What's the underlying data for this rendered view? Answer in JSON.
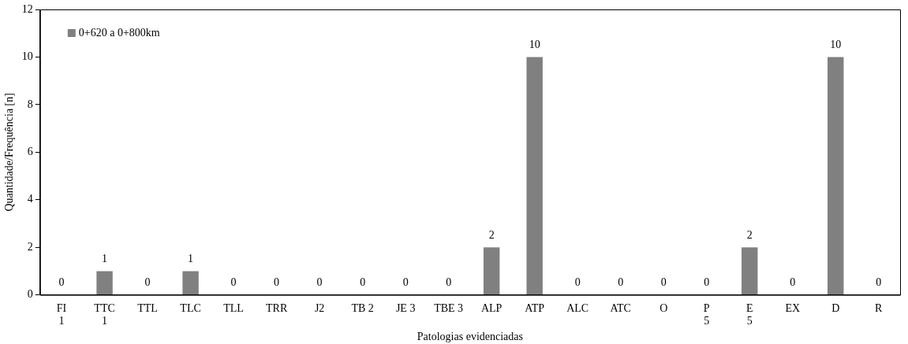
{
  "chart_data": {
    "type": "bar",
    "xlabel": "Patologias evidenciadas",
    "ylabel": "Quantidade/Frequência [n]",
    "categories": [
      "FI\n1",
      "TTC\n1",
      "TTL",
      "TLC",
      "TLL",
      "TRR",
      "J2",
      "TB 2",
      "JE 3",
      "TBE 3",
      "ALP",
      "ATP",
      "ALC",
      "ATC",
      "O",
      "P\n5",
      "E\n5",
      "EX",
      "D",
      "R"
    ],
    "series": [
      {
        "name": "0+620 a 0+800km",
        "color": "#808080",
        "values": [
          0,
          1,
          0,
          1,
          0,
          0,
          0,
          0,
          0,
          0,
          2,
          10,
          0,
          0,
          0,
          0,
          2,
          0,
          10,
          0
        ]
      }
    ],
    "ylim": [
      0,
      12
    ],
    "yticks": [
      0,
      2,
      4,
      6,
      8,
      10,
      12
    ],
    "grid": false,
    "legend": "top left",
    "data_labels": true
  }
}
